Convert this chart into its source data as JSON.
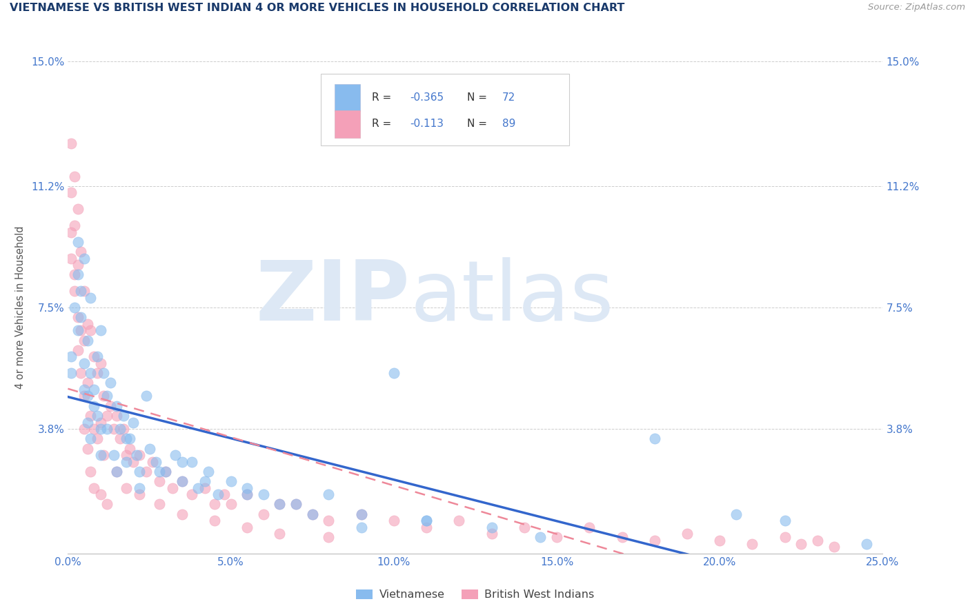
{
  "title": "VIETNAMESE VS BRITISH WEST INDIAN 4 OR MORE VEHICLES IN HOUSEHOLD CORRELATION CHART",
  "source_text": "Source: ZipAtlas.com",
  "ylabel": "4 or more Vehicles in Household",
  "xlim": [
    0.0,
    0.25
  ],
  "ylim": [
    0.0,
    0.15
  ],
  "xticks": [
    0.0,
    0.05,
    0.1,
    0.15,
    0.2,
    0.25
  ],
  "xtick_labels": [
    "0.0%",
    "5.0%",
    "10.0%",
    "15.0%",
    "20.0%",
    "25.0%"
  ],
  "yticks": [
    0.0,
    0.038,
    0.075,
    0.112,
    0.15
  ],
  "ytick_labels": [
    "",
    "3.8%",
    "7.5%",
    "11.2%",
    "15.0%"
  ],
  "background_color": "#ffffff",
  "grid_color": "#cccccc",
  "title_color": "#1a3a6b",
  "axis_color": "#4477cc",
  "watermark_zip": "ZIP",
  "watermark_atlas": "atlas",
  "watermark_color": "#dde8f5",
  "legend_r1_val": "-0.365",
  "legend_n1_val": "72",
  "legend_r2_val": "-0.113",
  "legend_n2_val": "89",
  "vietnamese_color": "#88bbee",
  "bwi_color": "#f4a0b8",
  "trend1_color": "#3366cc",
  "trend2_color": "#ee8899",
  "vietnamese_points_x": [
    0.001,
    0.002,
    0.003,
    0.003,
    0.004,
    0.005,
    0.005,
    0.006,
    0.006,
    0.007,
    0.007,
    0.008,
    0.009,
    0.009,
    0.01,
    0.01,
    0.011,
    0.012,
    0.013,
    0.014,
    0.015,
    0.016,
    0.017,
    0.018,
    0.019,
    0.02,
    0.021,
    0.022,
    0.024,
    0.025,
    0.027,
    0.03,
    0.033,
    0.035,
    0.038,
    0.04,
    0.043,
    0.046,
    0.05,
    0.055,
    0.06,
    0.07,
    0.08,
    0.09,
    0.1,
    0.11,
    0.13,
    0.145,
    0.18,
    0.205,
    0.22,
    0.245,
    0.001,
    0.003,
    0.004,
    0.005,
    0.006,
    0.007,
    0.008,
    0.01,
    0.012,
    0.015,
    0.018,
    0.022,
    0.028,
    0.035,
    0.042,
    0.055,
    0.065,
    0.075,
    0.09,
    0.11
  ],
  "vietnamese_points_y": [
    0.06,
    0.075,
    0.085,
    0.068,
    0.072,
    0.09,
    0.058,
    0.065,
    0.048,
    0.078,
    0.055,
    0.05,
    0.06,
    0.042,
    0.068,
    0.038,
    0.055,
    0.048,
    0.052,
    0.03,
    0.045,
    0.038,
    0.042,
    0.028,
    0.035,
    0.04,
    0.03,
    0.025,
    0.048,
    0.032,
    0.028,
    0.025,
    0.03,
    0.022,
    0.028,
    0.02,
    0.025,
    0.018,
    0.022,
    0.02,
    0.018,
    0.015,
    0.018,
    0.012,
    0.055,
    0.01,
    0.008,
    0.005,
    0.035,
    0.012,
    0.01,
    0.003,
    0.055,
    0.095,
    0.08,
    0.05,
    0.04,
    0.035,
    0.045,
    0.03,
    0.038,
    0.025,
    0.035,
    0.02,
    0.025,
    0.028,
    0.022,
    0.018,
    0.015,
    0.012,
    0.008,
    0.01
  ],
  "bwi_points_x": [
    0.001,
    0.001,
    0.001,
    0.002,
    0.002,
    0.002,
    0.003,
    0.003,
    0.003,
    0.004,
    0.004,
    0.005,
    0.005,
    0.005,
    0.006,
    0.006,
    0.007,
    0.007,
    0.008,
    0.008,
    0.009,
    0.009,
    0.01,
    0.01,
    0.011,
    0.011,
    0.012,
    0.013,
    0.014,
    0.015,
    0.016,
    0.017,
    0.018,
    0.019,
    0.02,
    0.022,
    0.024,
    0.026,
    0.028,
    0.03,
    0.032,
    0.035,
    0.038,
    0.042,
    0.045,
    0.048,
    0.05,
    0.055,
    0.06,
    0.065,
    0.07,
    0.075,
    0.08,
    0.09,
    0.1,
    0.11,
    0.12,
    0.13,
    0.14,
    0.15,
    0.16,
    0.17,
    0.18,
    0.19,
    0.2,
    0.21,
    0.22,
    0.225,
    0.23,
    0.235,
    0.001,
    0.002,
    0.003,
    0.004,
    0.005,
    0.006,
    0.007,
    0.008,
    0.01,
    0.012,
    0.015,
    0.018,
    0.022,
    0.028,
    0.035,
    0.045,
    0.055,
    0.065,
    0.08
  ],
  "bwi_points_y": [
    0.125,
    0.11,
    0.09,
    0.115,
    0.1,
    0.085,
    0.105,
    0.088,
    0.072,
    0.092,
    0.068,
    0.08,
    0.065,
    0.048,
    0.07,
    0.052,
    0.068,
    0.042,
    0.06,
    0.038,
    0.055,
    0.035,
    0.058,
    0.04,
    0.048,
    0.03,
    0.042,
    0.045,
    0.038,
    0.042,
    0.035,
    0.038,
    0.03,
    0.032,
    0.028,
    0.03,
    0.025,
    0.028,
    0.022,
    0.025,
    0.02,
    0.022,
    0.018,
    0.02,
    0.015,
    0.018,
    0.015,
    0.018,
    0.012,
    0.015,
    0.015,
    0.012,
    0.01,
    0.012,
    0.01,
    0.008,
    0.01,
    0.006,
    0.008,
    0.005,
    0.008,
    0.005,
    0.004,
    0.006,
    0.004,
    0.003,
    0.005,
    0.003,
    0.004,
    0.002,
    0.098,
    0.08,
    0.062,
    0.055,
    0.038,
    0.032,
    0.025,
    0.02,
    0.018,
    0.015,
    0.025,
    0.02,
    0.018,
    0.015,
    0.012,
    0.01,
    0.008,
    0.006,
    0.005
  ]
}
